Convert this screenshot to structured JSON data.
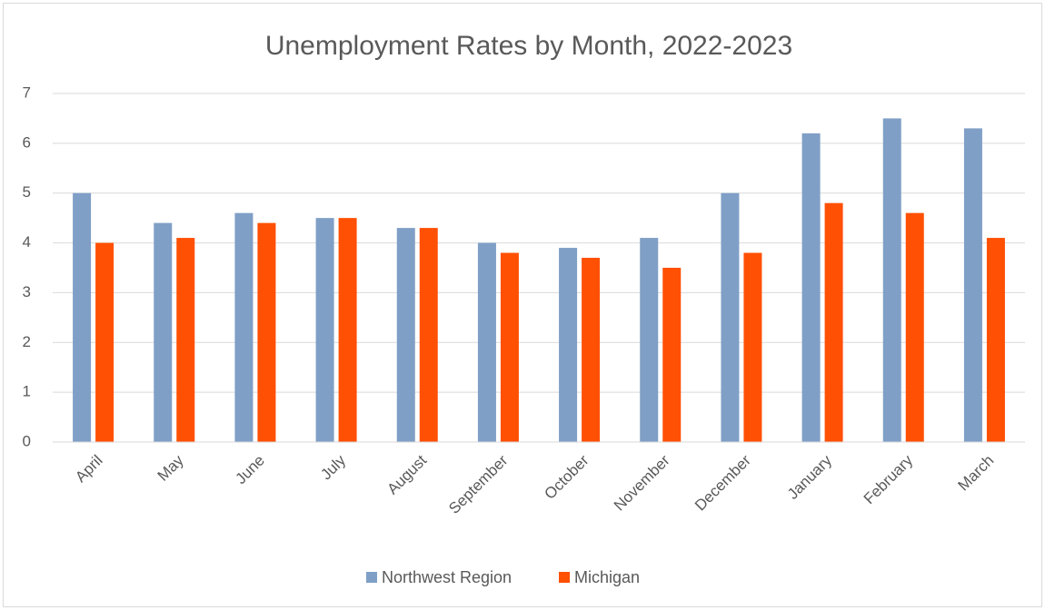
{
  "chart_data": {
    "type": "bar",
    "title": "Unemployment Rates by Month, 2022-2023",
    "categories": [
      "April",
      "May",
      "June",
      "July",
      "August",
      "September",
      "October",
      "November",
      "December",
      "January",
      "February",
      "March"
    ],
    "series": [
      {
        "name": "Northwest Region",
        "color": "#7f9fc6",
        "values": [
          5.0,
          4.4,
          4.6,
          4.5,
          4.3,
          4.0,
          3.9,
          4.1,
          5.0,
          6.2,
          6.5,
          6.3
        ]
      },
      {
        "name": "Michigan",
        "color": "#ff5003",
        "values": [
          4.0,
          4.1,
          4.4,
          4.5,
          4.3,
          3.8,
          3.7,
          3.5,
          3.8,
          4.8,
          4.6,
          4.1
        ]
      }
    ],
    "ylim": [
      0,
      7
    ],
    "yticks": [
      0,
      1,
      2,
      3,
      4,
      5,
      6,
      7
    ],
    "grid": true,
    "legend": "bottom"
  }
}
